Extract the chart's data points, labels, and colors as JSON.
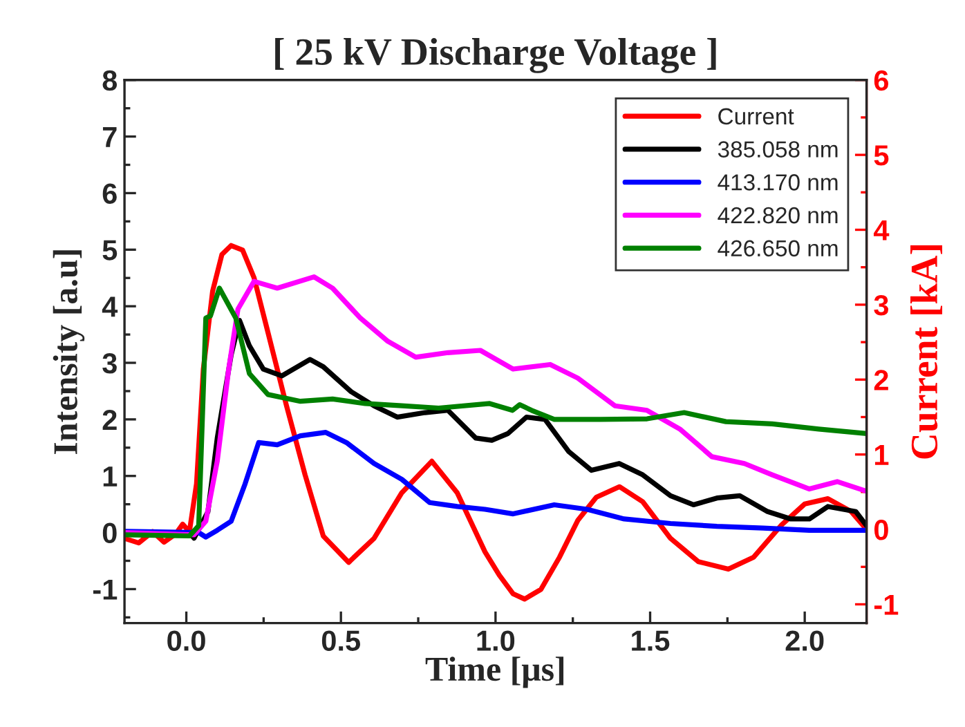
{
  "chart_data": {
    "type": "line",
    "title": "[ 25 kV Discharge Voltage ]",
    "xlabel": "Time [μs]",
    "ylabel": "Intensity [a.u]",
    "y2label": "Current [kA]",
    "xlim": [
      -0.2,
      2.2
    ],
    "xticks": [
      {
        "value": 0,
        "label": "0.0"
      },
      {
        "value": 0.5,
        "label": "0.5"
      },
      {
        "value": 1.0,
        "label": "1.0"
      },
      {
        "value": 1.5,
        "label": "1.5"
      },
      {
        "value": 2.0,
        "label": "2.0"
      }
    ],
    "ylim": [
      -1.6,
      8
    ],
    "yticks": [
      -1,
      0,
      1,
      2,
      3,
      4,
      5,
      6,
      7,
      8
    ],
    "y2lim": [
      -1.25,
      6
    ],
    "y2ticks": [
      -1,
      0,
      1,
      2,
      3,
      4,
      5,
      6
    ],
    "legend": "top right",
    "grid": false,
    "line_style": "solid",
    "marker": "none",
    "series": [
      {
        "name": "Current",
        "color": "#ff0000",
        "axis": "y2",
        "x": [
          -0.2,
          -0.154,
          -0.109,
          -0.072,
          -0.034,
          -0.012,
          0.01,
          0.033,
          0.055,
          0.085,
          0.115,
          0.145,
          0.182,
          0.219,
          0.264,
          0.324,
          0.384,
          0.443,
          0.525,
          0.607,
          0.697,
          0.794,
          0.876,
          0.966,
          1.012,
          1.057,
          1.094,
          1.147,
          1.207,
          1.266,
          1.326,
          1.401,
          1.476,
          1.566,
          1.656,
          1.753,
          1.835,
          1.925,
          2.0,
          2.075,
          2.15,
          2.2
        ],
        "values": [
          -0.12,
          -0.18,
          -0.03,
          -0.17,
          -0.06,
          0.07,
          -0.03,
          0.61,
          2.14,
          3.18,
          3.67,
          3.79,
          3.73,
          3.36,
          2.63,
          1.65,
          0.73,
          -0.09,
          -0.44,
          -0.12,
          0.49,
          0.91,
          0.49,
          -0.3,
          -0.61,
          -0.86,
          -0.93,
          -0.8,
          -0.37,
          0.12,
          0.43,
          0.57,
          0.37,
          -0.12,
          -0.43,
          -0.53,
          -0.37,
          0.06,
          0.34,
          0.41,
          0.24,
          0.0
        ]
      },
      {
        "name": "385.058 nm",
        "color": "#000000",
        "x": [
          -0.2,
          0.01,
          0.025,
          0.07,
          0.1,
          0.145,
          0.172,
          0.204,
          0.249,
          0.309,
          0.4,
          0.443,
          0.533,
          0.607,
          0.682,
          0.772,
          0.846,
          0.936,
          0.988,
          1.04,
          1.1,
          1.16,
          1.237,
          1.31,
          1.4,
          1.476,
          1.566,
          1.64,
          1.716,
          1.79,
          1.88,
          1.955,
          2.015,
          2.075,
          2.165,
          2.2
        ],
        "values": [
          0,
          0,
          -0.1,
          0.37,
          1.67,
          3.14,
          3.75,
          3.3,
          2.89,
          2.77,
          3.06,
          2.93,
          2.49,
          2.24,
          2.04,
          2.12,
          2.16,
          1.67,
          1.63,
          1.75,
          2.04,
          2.0,
          1.43,
          1.1,
          1.22,
          1.02,
          0.65,
          0.49,
          0.61,
          0.65,
          0.37,
          0.24,
          0.24,
          0.46,
          0.37,
          0.12
        ]
      },
      {
        "name": "413.170 nm",
        "color": "#0000ff",
        "x": [
          -0.2,
          0.04,
          0.063,
          0.1,
          0.145,
          0.19,
          0.234,
          0.294,
          0.369,
          0.451,
          0.518,
          0.607,
          0.697,
          0.787,
          0.876,
          0.966,
          1.057,
          1.19,
          1.296,
          1.416,
          1.566,
          1.716,
          1.865,
          2.015,
          2.2
        ],
        "values": [
          0.02,
          0,
          -0.08,
          0.04,
          0.2,
          0.86,
          1.59,
          1.55,
          1.71,
          1.77,
          1.59,
          1.22,
          0.94,
          0.53,
          0.46,
          0.41,
          0.33,
          0.49,
          0.41,
          0.24,
          0.16,
          0.11,
          0.08,
          0.04,
          0.04
        ]
      },
      {
        "name": "422.820 nm",
        "color": "#ff00ff",
        "x": [
          -0.2,
          0.025,
          0.063,
          0.1,
          0.137,
          0.167,
          0.219,
          0.294,
          0.413,
          0.473,
          0.563,
          0.652,
          0.742,
          0.846,
          0.951,
          1.057,
          1.177,
          1.266,
          1.386,
          1.49,
          1.596,
          1.7,
          1.805,
          1.895,
          2.015,
          2.105,
          2.2
        ],
        "values": [
          0,
          -0.04,
          0.2,
          1.26,
          2.89,
          3.95,
          4.44,
          4.32,
          4.52,
          4.32,
          3.79,
          3.38,
          3.1,
          3.18,
          3.22,
          2.89,
          2.97,
          2.73,
          2.24,
          2.16,
          1.83,
          1.34,
          1.22,
          1.02,
          0.77,
          0.9,
          0.73
        ]
      },
      {
        "name": "426.650 nm",
        "color": "#008000",
        "x": [
          -0.2,
          0.01,
          0.04,
          0.063,
          0.078,
          0.107,
          0.16,
          0.204,
          0.264,
          0.369,
          0.473,
          0.578,
          0.697,
          0.816,
          0.981,
          1.055,
          1.078,
          1.117,
          1.19,
          1.34,
          1.49,
          1.61,
          1.745,
          1.895,
          2.045,
          2.2
        ],
        "values": [
          -0.04,
          -0.06,
          0.12,
          3.79,
          3.83,
          4.32,
          3.79,
          2.81,
          2.44,
          2.32,
          2.36,
          2.28,
          2.24,
          2.2,
          2.28,
          2.16,
          2.26,
          2.16,
          2.0,
          2.0,
          2.01,
          2.12,
          1.96,
          1.92,
          1.83,
          1.75
        ]
      }
    ]
  }
}
